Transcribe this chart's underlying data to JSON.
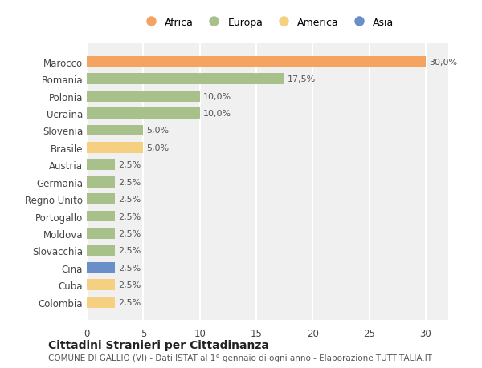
{
  "countries": [
    "Marocco",
    "Romania",
    "Polonia",
    "Ucraina",
    "Slovenia",
    "Brasile",
    "Austria",
    "Germania",
    "Regno Unito",
    "Portogallo",
    "Moldova",
    "Slovacchia",
    "Cina",
    "Cuba",
    "Colombia"
  ],
  "values": [
    30.0,
    17.5,
    10.0,
    10.0,
    5.0,
    5.0,
    2.5,
    2.5,
    2.5,
    2.5,
    2.5,
    2.5,
    2.5,
    2.5,
    2.5
  ],
  "labels": [
    "30,0%",
    "17,5%",
    "10,0%",
    "10,0%",
    "5,0%",
    "5,0%",
    "2,5%",
    "2,5%",
    "2,5%",
    "2,5%",
    "2,5%",
    "2,5%",
    "2,5%",
    "2,5%",
    "2,5%"
  ],
  "continents": [
    "Africa",
    "Europa",
    "Europa",
    "Europa",
    "Europa",
    "America",
    "Europa",
    "Europa",
    "Europa",
    "Europa",
    "Europa",
    "Europa",
    "Asia",
    "America",
    "America"
  ],
  "colors": {
    "Africa": "#F4A460",
    "Europa": "#A8C08A",
    "America": "#F5D080",
    "Asia": "#6A8FC8"
  },
  "legend_entries": [
    "Africa",
    "Europa",
    "America",
    "Asia"
  ],
  "title": "Cittadini Stranieri per Cittadinanza",
  "subtitle": "COMUNE DI GALLIO (VI) - Dati ISTAT al 1° gennaio di ogni anno - Elaborazione TUTTITALIA.IT",
  "xlim": [
    0,
    32
  ],
  "xticks": [
    0,
    5,
    10,
    15,
    20,
    25,
    30
  ],
  "background_color": "#ffffff",
  "bar_background": "#f0f0f0",
  "grid_color": "#ffffff"
}
